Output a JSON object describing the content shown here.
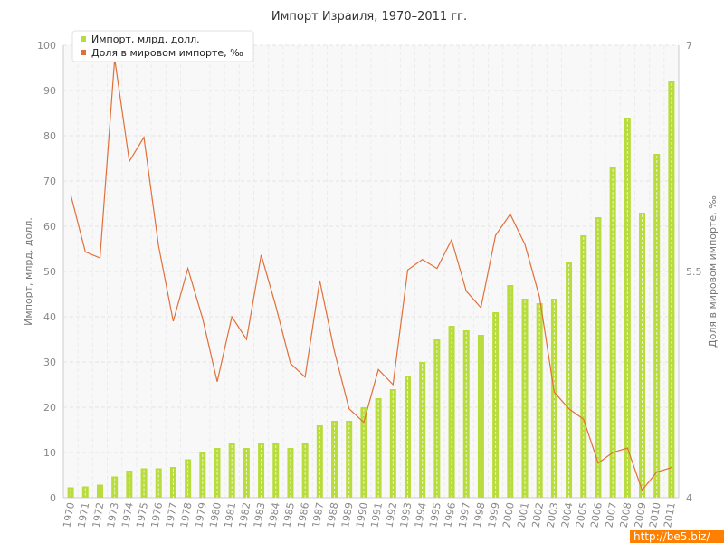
{
  "chart_data": {
    "type": "bar",
    "title": "Импорт Израиля, 1970–2011 гг.",
    "ylabel_left": "Импорт, млрд. долл.",
    "ylabel_right": "Доля в мировом импорте, ‰",
    "ylim_left": [
      0,
      100
    ],
    "yticks_left": [
      "0",
      "10",
      "20",
      "30",
      "40",
      "50",
      "60",
      "70",
      "80",
      "90",
      "100"
    ],
    "ylim_right": [
      4,
      7
    ],
    "yticks_right": [
      "4",
      "5.5",
      "7"
    ],
    "grid": true,
    "legend_position": "top-left",
    "categories": [
      "1970",
      "1971",
      "1972",
      "1973",
      "1974",
      "1975",
      "1976",
      "1977",
      "1978",
      "1979",
      "1980",
      "1981",
      "1982",
      "1983",
      "1984",
      "1985",
      "1986",
      "1987",
      "1988",
      "1989",
      "1990",
      "1991",
      "1992",
      "1993",
      "1994",
      "1995",
      "1996",
      "1997",
      "1998",
      "1999",
      "2000",
      "2001",
      "2002",
      "2003",
      "2004",
      "2005",
      "2006",
      "2007",
      "2008",
      "2009",
      "2010",
      "2011"
    ],
    "series": [
      {
        "name": "Импорт, млрд. долл.",
        "type": "bar",
        "axis": "left",
        "color": "#b8dc3c",
        "values": [
          2.3,
          2.5,
          2.9,
          4.7,
          6.0,
          6.5,
          6.5,
          6.8,
          8.5,
          10.0,
          11.0,
          12.0,
          11.0,
          12.0,
          12.0,
          11.0,
          12.0,
          16.0,
          17.0,
          17.0,
          20.0,
          22.0,
          24.0,
          27.0,
          30.0,
          35.0,
          38.0,
          37.0,
          36.0,
          41.0,
          47.0,
          44.0,
          43.0,
          44.0,
          52.0,
          58.0,
          62.0,
          73.0,
          84.0,
          63.0,
          76.0,
          92.0
        ]
      },
      {
        "name": "Доля в мировом импорте, ‰",
        "type": "line",
        "axis": "right",
        "color": "#e0703a",
        "values": [
          6.01,
          5.63,
          5.59,
          6.91,
          6.23,
          6.39,
          5.67,
          5.17,
          5.52,
          5.19,
          4.77,
          5.2,
          5.05,
          5.61,
          5.27,
          4.89,
          4.8,
          5.44,
          4.97,
          4.59,
          4.5,
          4.85,
          4.75,
          5.51,
          5.58,
          5.52,
          5.71,
          5.37,
          5.26,
          5.74,
          5.88,
          5.68,
          5.33,
          4.7,
          4.59,
          4.52,
          4.23,
          4.3,
          4.33,
          4.05,
          4.17,
          4.2
        ]
      }
    ]
  },
  "watermark": "http://be5.biz/"
}
